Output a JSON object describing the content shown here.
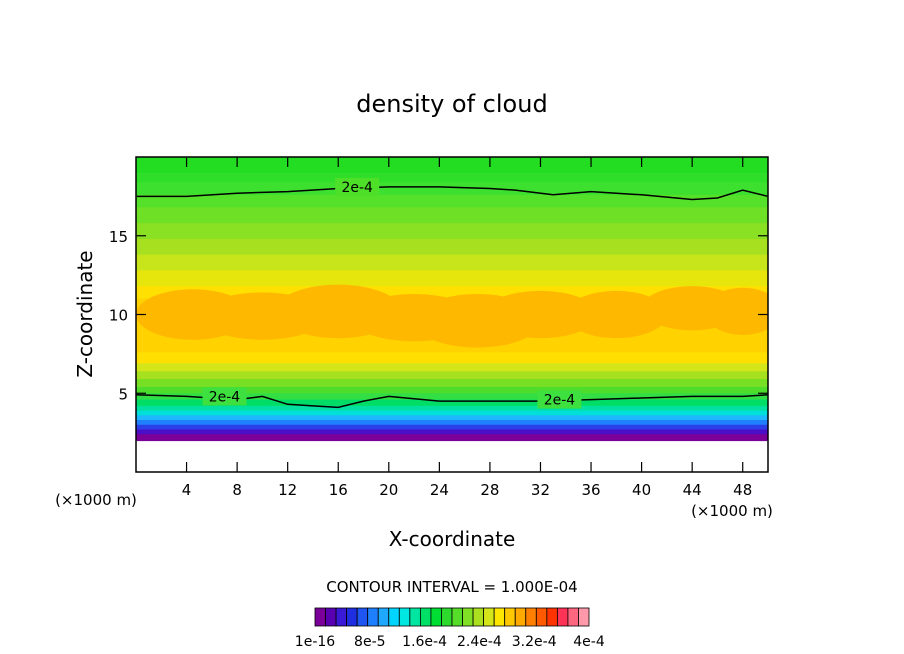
{
  "chart_data": {
    "type": "heatmap",
    "title": "density of cloud",
    "xlabel": "X-coordinate",
    "ylabel": "Z-coordinate",
    "x_unit_left": "(×1000 m)",
    "x_unit_right": "(×1000 m)",
    "xlim": [
      0,
      50
    ],
    "ylim": [
      0,
      20
    ],
    "xticks": [
      4,
      8,
      12,
      16,
      20,
      24,
      28,
      32,
      36,
      40,
      44,
      48
    ],
    "yticks": [
      5,
      10,
      15
    ],
    "contour_interval_text": "CONTOUR INTERVAL = 1.000E-04",
    "contour_labels": [
      {
        "text": "2e-4",
        "x": 17.5,
        "z": 18.1
      },
      {
        "text": "2e-4",
        "x": 7.0,
        "z": 4.8
      },
      {
        "text": "2e-4",
        "x": 33.5,
        "z": 4.6
      }
    ],
    "upper_contour_z": [
      [
        0,
        17.5
      ],
      [
        4,
        17.5
      ],
      [
        8,
        17.7
      ],
      [
        12,
        17.8
      ],
      [
        16,
        18.0
      ],
      [
        20,
        18.1
      ],
      [
        24,
        18.1
      ],
      [
        28,
        18.0
      ],
      [
        30,
        17.9
      ],
      [
        33,
        17.6
      ],
      [
        36,
        17.8
      ],
      [
        40,
        17.6
      ],
      [
        44,
        17.3
      ],
      [
        46,
        17.4
      ],
      [
        48,
        17.9
      ],
      [
        50,
        17.5
      ]
    ],
    "lower_contour_z": [
      [
        0,
        4.9
      ],
      [
        4,
        4.8
      ],
      [
        8,
        4.6
      ],
      [
        10,
        4.8
      ],
      [
        12,
        4.3
      ],
      [
        14,
        4.2
      ],
      [
        16,
        4.1
      ],
      [
        18,
        4.5
      ],
      [
        20,
        4.8
      ],
      [
        24,
        4.5
      ],
      [
        28,
        4.5
      ],
      [
        32,
        4.5
      ],
      [
        36,
        4.6
      ],
      [
        40,
        4.7
      ],
      [
        44,
        4.8
      ],
      [
        48,
        4.8
      ],
      [
        50,
        4.9
      ]
    ],
    "colorbar": {
      "colors": [
        "#7a0099",
        "#5a00b3",
        "#3a1ad6",
        "#1f2ee0",
        "#1f55f0",
        "#1f80ff",
        "#1fa8ff",
        "#00d4ff",
        "#00e6e0",
        "#00e6a0",
        "#00e066",
        "#00dd33",
        "#2ed92e",
        "#55dd2a",
        "#80e025",
        "#aae020",
        "#d4e61a",
        "#ffe600",
        "#ffc800",
        "#ffaa00",
        "#ff8000",
        "#ff5a00",
        "#ff3300",
        "#ff3355",
        "#ff6680",
        "#ff99aa"
      ],
      "labels": [
        "1e-16",
        "8e-5",
        "1.6e-4",
        "2.4e-4",
        "3.2e-4",
        "4e-4"
      ]
    }
  }
}
